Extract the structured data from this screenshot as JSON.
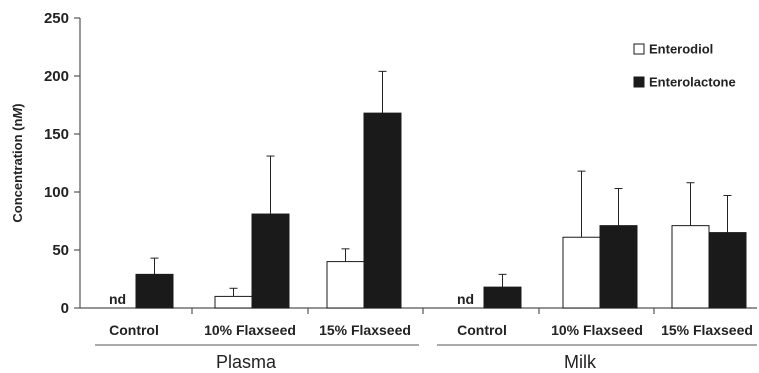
{
  "chart_data": {
    "type": "bar",
    "ylabel": "Concentration (nM)",
    "ylabel_prefix": "Concentration (n",
    "ylabel_italic": "M",
    "ylabel_suffix": ")",
    "ylim": [
      0,
      250
    ],
    "yticks": [
      "0",
      "50",
      "100",
      "150",
      "200",
      "250"
    ],
    "ytick_values": [
      0,
      50,
      100,
      150,
      200,
      250
    ],
    "legend_position": "top-right",
    "categories": [
      "Control",
      "10% Flaxseed",
      "15% Flaxseed",
      "Control",
      "10% Flaxseed",
      "15% Flaxseed"
    ],
    "groups": [
      "Plasma",
      "Milk"
    ],
    "series": [
      {
        "name": "Enterodiol",
        "fill": "#ffffff",
        "values": [
          null,
          10,
          40,
          null,
          61,
          71
        ],
        "errors": [
          null,
          7,
          11,
          null,
          57,
          37
        ],
        "labels": [
          "nd",
          "",
          "",
          "nd",
          "",
          ""
        ]
      },
      {
        "name": "Enterolactone",
        "fill": "#1a1a1a",
        "values": [
          29,
          81,
          168,
          18,
          71,
          65
        ],
        "errors": [
          14,
          50,
          36,
          11,
          32,
          32
        ],
        "labels": [
          "",
          "",
          "",
          "",
          "",
          ""
        ]
      }
    ]
  }
}
